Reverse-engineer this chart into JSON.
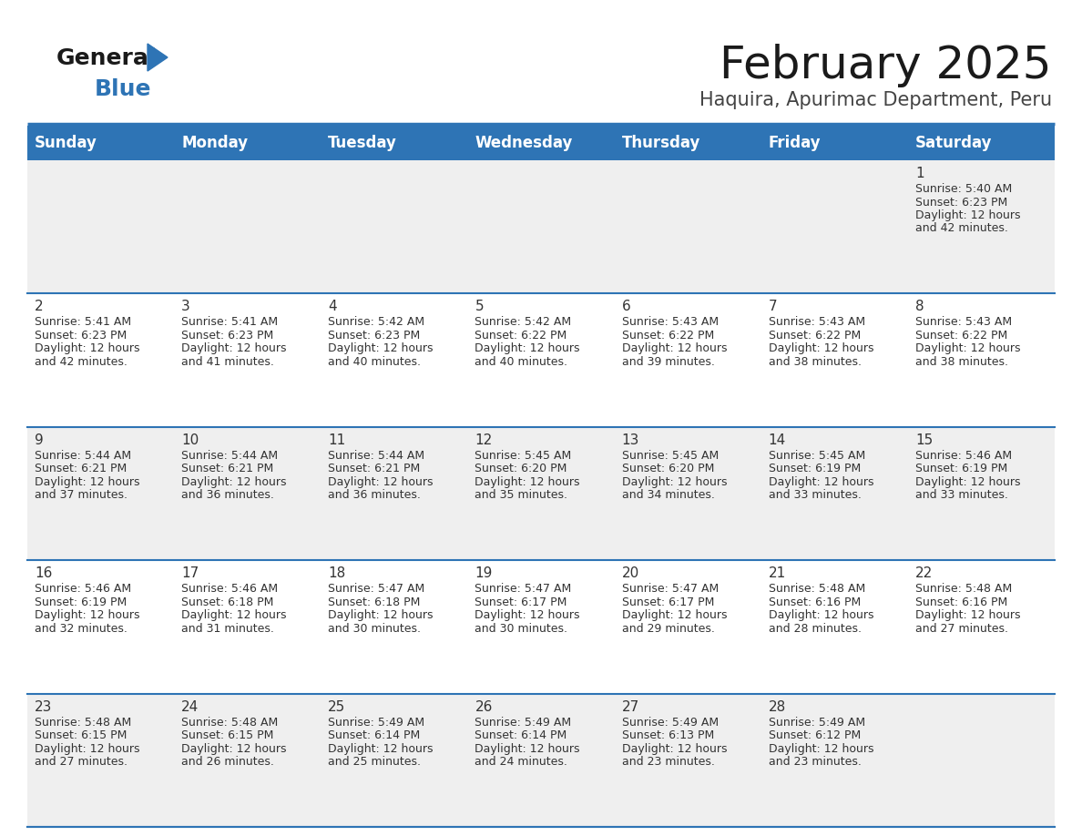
{
  "title": "February 2025",
  "subtitle": "Haquira, Apurimac Department, Peru",
  "header_bg": "#2E74B5",
  "header_text": "#FFFFFF",
  "row_bg_odd": "#EFEFEF",
  "row_bg_even": "#FFFFFF",
  "separator_color": "#2E74B5",
  "text_color": "#333333",
  "day_headers": [
    "Sunday",
    "Monday",
    "Tuesday",
    "Wednesday",
    "Thursday",
    "Friday",
    "Saturday"
  ],
  "days": [
    {
      "day": 1,
      "col": 6,
      "row": 0,
      "sunrise": "5:40 AM",
      "sunset": "6:23 PM",
      "daylight_line1": "Daylight: 12 hours",
      "daylight_line2": "and 42 minutes."
    },
    {
      "day": 2,
      "col": 0,
      "row": 1,
      "sunrise": "5:41 AM",
      "sunset": "6:23 PM",
      "daylight_line1": "Daylight: 12 hours",
      "daylight_line2": "and 42 minutes."
    },
    {
      "day": 3,
      "col": 1,
      "row": 1,
      "sunrise": "5:41 AM",
      "sunset": "6:23 PM",
      "daylight_line1": "Daylight: 12 hours",
      "daylight_line2": "and 41 minutes."
    },
    {
      "day": 4,
      "col": 2,
      "row": 1,
      "sunrise": "5:42 AM",
      "sunset": "6:23 PM",
      "daylight_line1": "Daylight: 12 hours",
      "daylight_line2": "and 40 minutes."
    },
    {
      "day": 5,
      "col": 3,
      "row": 1,
      "sunrise": "5:42 AM",
      "sunset": "6:22 PM",
      "daylight_line1": "Daylight: 12 hours",
      "daylight_line2": "and 40 minutes."
    },
    {
      "day": 6,
      "col": 4,
      "row": 1,
      "sunrise": "5:43 AM",
      "sunset": "6:22 PM",
      "daylight_line1": "Daylight: 12 hours",
      "daylight_line2": "and 39 minutes."
    },
    {
      "day": 7,
      "col": 5,
      "row": 1,
      "sunrise": "5:43 AM",
      "sunset": "6:22 PM",
      "daylight_line1": "Daylight: 12 hours",
      "daylight_line2": "and 38 minutes."
    },
    {
      "day": 8,
      "col": 6,
      "row": 1,
      "sunrise": "5:43 AM",
      "sunset": "6:22 PM",
      "daylight_line1": "Daylight: 12 hours",
      "daylight_line2": "and 38 minutes."
    },
    {
      "day": 9,
      "col": 0,
      "row": 2,
      "sunrise": "5:44 AM",
      "sunset": "6:21 PM",
      "daylight_line1": "Daylight: 12 hours",
      "daylight_line2": "and 37 minutes."
    },
    {
      "day": 10,
      "col": 1,
      "row": 2,
      "sunrise": "5:44 AM",
      "sunset": "6:21 PM",
      "daylight_line1": "Daylight: 12 hours",
      "daylight_line2": "and 36 minutes."
    },
    {
      "day": 11,
      "col": 2,
      "row": 2,
      "sunrise": "5:44 AM",
      "sunset": "6:21 PM",
      "daylight_line1": "Daylight: 12 hours",
      "daylight_line2": "and 36 minutes."
    },
    {
      "day": 12,
      "col": 3,
      "row": 2,
      "sunrise": "5:45 AM",
      "sunset": "6:20 PM",
      "daylight_line1": "Daylight: 12 hours",
      "daylight_line2": "and 35 minutes."
    },
    {
      "day": 13,
      "col": 4,
      "row": 2,
      "sunrise": "5:45 AM",
      "sunset": "6:20 PM",
      "daylight_line1": "Daylight: 12 hours",
      "daylight_line2": "and 34 minutes."
    },
    {
      "day": 14,
      "col": 5,
      "row": 2,
      "sunrise": "5:45 AM",
      "sunset": "6:19 PM",
      "daylight_line1": "Daylight: 12 hours",
      "daylight_line2": "and 33 minutes."
    },
    {
      "day": 15,
      "col": 6,
      "row": 2,
      "sunrise": "5:46 AM",
      "sunset": "6:19 PM",
      "daylight_line1": "Daylight: 12 hours",
      "daylight_line2": "and 33 minutes."
    },
    {
      "day": 16,
      "col": 0,
      "row": 3,
      "sunrise": "5:46 AM",
      "sunset": "6:19 PM",
      "daylight_line1": "Daylight: 12 hours",
      "daylight_line2": "and 32 minutes."
    },
    {
      "day": 17,
      "col": 1,
      "row": 3,
      "sunrise": "5:46 AM",
      "sunset": "6:18 PM",
      "daylight_line1": "Daylight: 12 hours",
      "daylight_line2": "and 31 minutes."
    },
    {
      "day": 18,
      "col": 2,
      "row": 3,
      "sunrise": "5:47 AM",
      "sunset": "6:18 PM",
      "daylight_line1": "Daylight: 12 hours",
      "daylight_line2": "and 30 minutes."
    },
    {
      "day": 19,
      "col": 3,
      "row": 3,
      "sunrise": "5:47 AM",
      "sunset": "6:17 PM",
      "daylight_line1": "Daylight: 12 hours",
      "daylight_line2": "and 30 minutes."
    },
    {
      "day": 20,
      "col": 4,
      "row": 3,
      "sunrise": "5:47 AM",
      "sunset": "6:17 PM",
      "daylight_line1": "Daylight: 12 hours",
      "daylight_line2": "and 29 minutes."
    },
    {
      "day": 21,
      "col": 5,
      "row": 3,
      "sunrise": "5:48 AM",
      "sunset": "6:16 PM",
      "daylight_line1": "Daylight: 12 hours",
      "daylight_line2": "and 28 minutes."
    },
    {
      "day": 22,
      "col": 6,
      "row": 3,
      "sunrise": "5:48 AM",
      "sunset": "6:16 PM",
      "daylight_line1": "Daylight: 12 hours",
      "daylight_line2": "and 27 minutes."
    },
    {
      "day": 23,
      "col": 0,
      "row": 4,
      "sunrise": "5:48 AM",
      "sunset": "6:15 PM",
      "daylight_line1": "Daylight: 12 hours",
      "daylight_line2": "and 27 minutes."
    },
    {
      "day": 24,
      "col": 1,
      "row": 4,
      "sunrise": "5:48 AM",
      "sunset": "6:15 PM",
      "daylight_line1": "Daylight: 12 hours",
      "daylight_line2": "and 26 minutes."
    },
    {
      "day": 25,
      "col": 2,
      "row": 4,
      "sunrise": "5:49 AM",
      "sunset": "6:14 PM",
      "daylight_line1": "Daylight: 12 hours",
      "daylight_line2": "and 25 minutes."
    },
    {
      "day": 26,
      "col": 3,
      "row": 4,
      "sunrise": "5:49 AM",
      "sunset": "6:14 PM",
      "daylight_line1": "Daylight: 12 hours",
      "daylight_line2": "and 24 minutes."
    },
    {
      "day": 27,
      "col": 4,
      "row": 4,
      "sunrise": "5:49 AM",
      "sunset": "6:13 PM",
      "daylight_line1": "Daylight: 12 hours",
      "daylight_line2": "and 23 minutes."
    },
    {
      "day": 28,
      "col": 5,
      "row": 4,
      "sunrise": "5:49 AM",
      "sunset": "6:12 PM",
      "daylight_line1": "Daylight: 12 hours",
      "daylight_line2": "and 23 minutes."
    }
  ],
  "num_rows": 5,
  "num_cols": 7,
  "title_fontsize": 36,
  "subtitle_fontsize": 15,
  "header_fontsize": 12,
  "day_num_fontsize": 11,
  "cell_info_fontsize": 9
}
